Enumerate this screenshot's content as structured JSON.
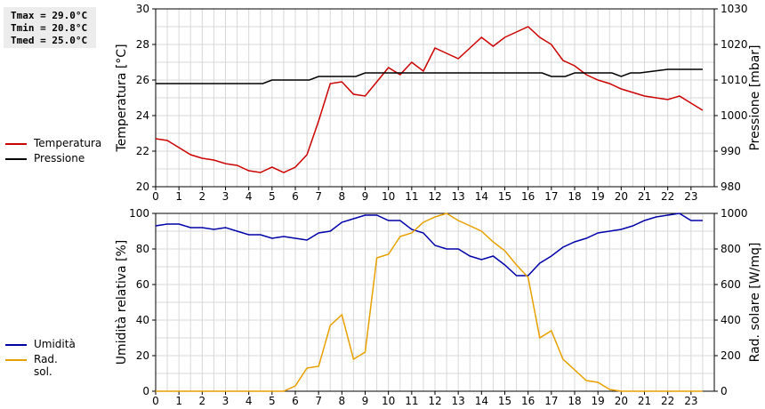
{
  "stats": {
    "tmax": "Tmax = 29.0°C",
    "tmin": "Tmin = 20.8°C",
    "tmed": "Tmed = 25.0°C"
  },
  "legend_top": [
    {
      "label": "Temperatura",
      "color": "#cc0000"
    },
    {
      "label": "Pressione",
      "color": "#000000"
    }
  ],
  "legend_bottom": [
    {
      "label": "Umidità",
      "color": "#0000aa"
    },
    {
      "label": "Rad. sol.",
      "color": "#e8a000"
    }
  ],
  "chart_data": [
    {
      "type": "line",
      "ylabel": "Temperatura [°C]",
      "y2label": "Pressione [mbar]",
      "ylim": [
        20,
        30
      ],
      "y2lim": [
        980,
        1030
      ],
      "yticks": [
        20,
        22,
        24,
        26,
        28,
        30
      ],
      "y2ticks": [
        980,
        990,
        1000,
        1010,
        1020,
        1030
      ],
      "xlim": [
        0,
        24
      ],
      "xticks": [
        0,
        1,
        2,
        3,
        4,
        5,
        6,
        7,
        8,
        9,
        10,
        11,
        12,
        13,
        14,
        15,
        16,
        17,
        18,
        19,
        20,
        21,
        22,
        23
      ],
      "grid": true,
      "series": [
        {
          "name": "Temperatura",
          "axis": "left",
          "color": "#cc0000",
          "x": [
            0,
            0.5,
            1,
            1.5,
            2,
            2.5,
            3,
            3.5,
            4,
            4.5,
            5,
            5.5,
            6,
            6.5,
            7,
            7.5,
            8,
            8.5,
            9,
            9.5,
            10,
            10.5,
            11,
            11.5,
            12,
            12.5,
            13,
            13.5,
            14,
            14.5,
            15,
            15.5,
            16,
            16.5,
            17,
            17.5,
            18,
            18.5,
            19,
            19.5,
            20,
            20.5,
            21,
            21.5,
            22,
            22.5,
            23,
            23.5
          ],
          "y": [
            22.7,
            22.6,
            22.2,
            21.8,
            21.6,
            21.5,
            21.3,
            21.2,
            20.9,
            20.8,
            21.1,
            20.8,
            21.1,
            21.8,
            23.7,
            25.8,
            25.9,
            25.2,
            25.1,
            25.9,
            26.7,
            26.3,
            27.0,
            26.5,
            27.8,
            27.5,
            27.2,
            27.8,
            28.4,
            27.9,
            28.4,
            28.7,
            29.0,
            28.4,
            28.0,
            27.1,
            26.8,
            26.3,
            26.0,
            25.8,
            25.5,
            25.3,
            25.1,
            25.0,
            24.9,
            25.1,
            24.7,
            24.3
          ]
        },
        {
          "name": "Pressione",
          "axis": "right",
          "color": "#000000",
          "x": [
            0,
            4.6,
            5.0,
            6.6,
            7.0,
            8.6,
            9.0,
            16.6,
            17.0,
            17.6,
            18.0,
            19.6,
            20.0,
            20.4,
            20.8,
            22.0,
            22.6,
            23.5
          ],
          "y": [
            1009,
            1009,
            1010,
            1010,
            1011,
            1011,
            1012,
            1012,
            1011,
            1011,
            1012,
            1012,
            1011,
            1012,
            1012,
            1013,
            1013,
            1013
          ]
        }
      ]
    },
    {
      "type": "line",
      "ylabel": "Umidità relativa [%]",
      "y2label": "Rad. solare [W/mq]",
      "ylim": [
        0,
        100
      ],
      "y2lim": [
        0,
        1000
      ],
      "yticks": [
        0,
        20,
        40,
        60,
        80,
        100
      ],
      "y2ticks": [
        0,
        200,
        400,
        600,
        800,
        1000
      ],
      "xlim": [
        0,
        24
      ],
      "xticks": [
        0,
        1,
        2,
        3,
        4,
        5,
        6,
        7,
        8,
        9,
        10,
        11,
        12,
        13,
        14,
        15,
        16,
        17,
        18,
        19,
        20,
        21,
        22,
        23
      ],
      "grid": true,
      "series": [
        {
          "name": "Umidità",
          "axis": "left",
          "color": "#0000aa",
          "x": [
            0,
            0.5,
            1,
            1.5,
            2,
            2.5,
            3,
            3.5,
            4,
            4.5,
            5,
            5.5,
            6,
            6.5,
            7,
            7.5,
            8,
            8.5,
            9,
            9.5,
            10,
            10.5,
            11,
            11.5,
            12,
            12.5,
            13,
            13.5,
            14,
            14.5,
            15,
            15.5,
            16,
            16.5,
            17,
            17.5,
            18,
            18.5,
            19,
            19.5,
            20,
            20.5,
            21,
            21.5,
            22,
            22.5,
            23,
            23.5
          ],
          "y": [
            93,
            94,
            94,
            92,
            92,
            91,
            92,
            90,
            88,
            88,
            86,
            87,
            86,
            85,
            89,
            90,
            95,
            97,
            99,
            99,
            96,
            96,
            91,
            89,
            82,
            80,
            80,
            76,
            74,
            76,
            71,
            65,
            65,
            72,
            76,
            81,
            84,
            86,
            89,
            90,
            91,
            93,
            96,
            98,
            99,
            100,
            96,
            96
          ]
        },
        {
          "name": "Rad. sol.",
          "axis": "right",
          "color": "#e8a000",
          "x": [
            0,
            0.5,
            1,
            1.5,
            2,
            2.5,
            3,
            3.5,
            4,
            4.5,
            5,
            5.5,
            6,
            6.5,
            7,
            7.5,
            8,
            8.5,
            9,
            9.5,
            10,
            10.5,
            11,
            11.5,
            12,
            12.5,
            13,
            13.5,
            14,
            14.5,
            15,
            15.5,
            16,
            16.5,
            17,
            17.5,
            18,
            18.5,
            19,
            19.5,
            20,
            20.5,
            21,
            21.5,
            22,
            22.5,
            23,
            23.5
          ],
          "y": [
            0,
            0,
            0,
            0,
            0,
            0,
            0,
            0,
            0,
            0,
            0,
            0,
            30,
            130,
            140,
            370,
            430,
            180,
            220,
            750,
            770,
            870,
            890,
            950,
            980,
            1000,
            960,
            930,
            900,
            840,
            790,
            710,
            640,
            300,
            340,
            180,
            120,
            60,
            50,
            10,
            0,
            0,
            0,
            0,
            0,
            0,
            0,
            0
          ]
        }
      ]
    }
  ]
}
